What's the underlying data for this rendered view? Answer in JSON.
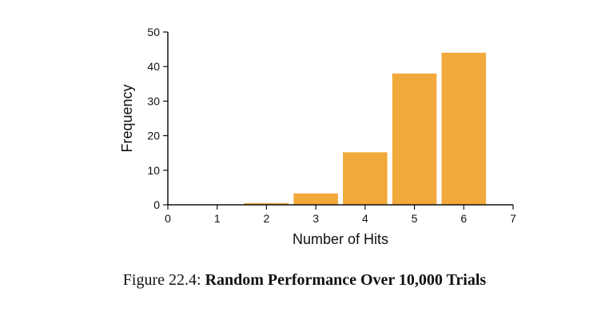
{
  "chart_data": {
    "type": "bar",
    "x": [
      2,
      3,
      4,
      5,
      6
    ],
    "values": [
      0.5,
      3.3,
      15.2,
      38,
      44
    ],
    "xlabel": "Number of Hits",
    "ylabel": "Frequency",
    "xlim": [
      0,
      7
    ],
    "ylim": [
      0,
      50
    ],
    "xticks": [
      0,
      1,
      2,
      3,
      4,
      5,
      6,
      7
    ],
    "yticks": [
      0,
      10,
      20,
      30,
      40,
      50
    ],
    "bar_color": "#f2a93b",
    "grid": false
  },
  "caption": {
    "prefix": "Figure 22.4:",
    "title": "Random Performance Over 10,000 Trials"
  }
}
